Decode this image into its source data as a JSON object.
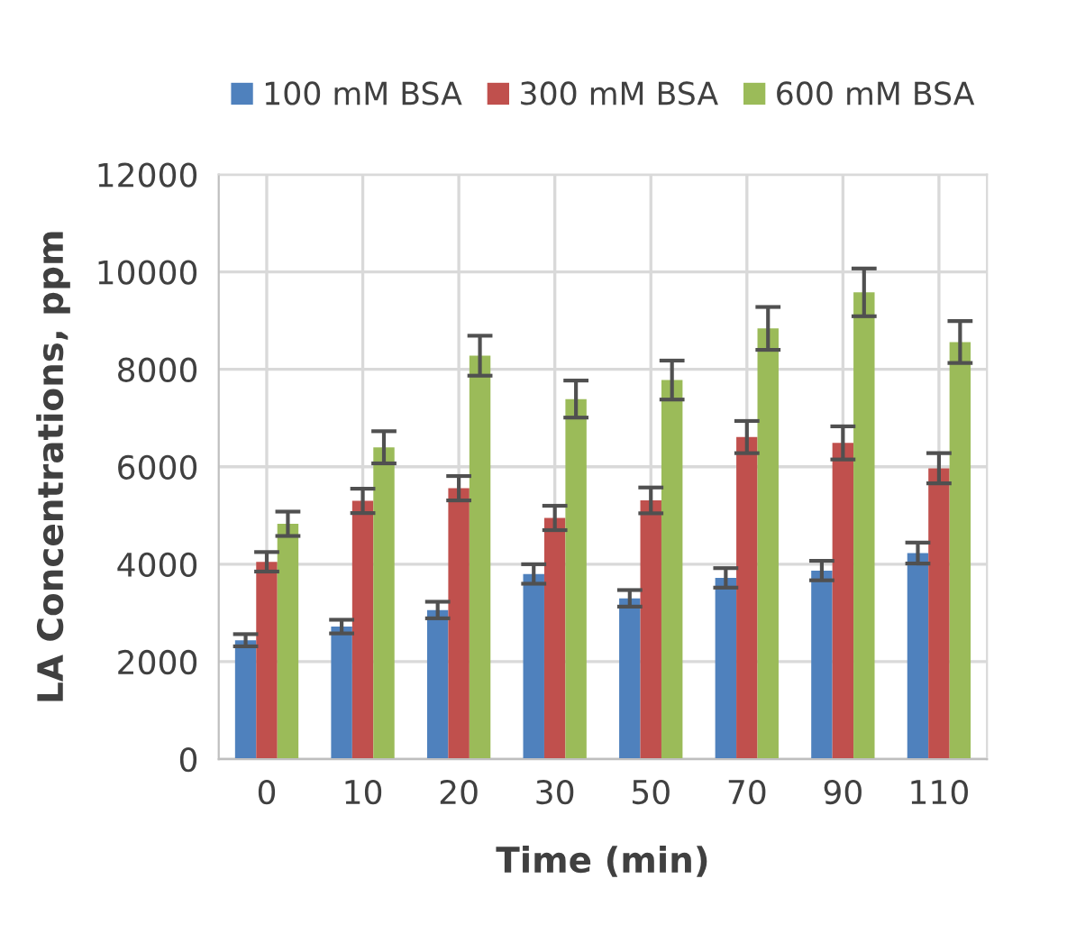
{
  "chart_data": {
    "type": "bar",
    "xlabel": "Time (min)",
    "ylabel": "LA Concentrations, ppm",
    "categories": [
      "0",
      "10",
      "20",
      "30",
      "50",
      "70",
      "90",
      "110"
    ],
    "series": [
      {
        "name": "100 mM BSA",
        "color": "#4f81bd",
        "values": [
          2440,
          2720,
          3060,
          3800,
          3300,
          3720,
          3870,
          4230
        ],
        "errors": [
          125,
          140,
          170,
          200,
          170,
          200,
          200,
          215
        ]
      },
      {
        "name": "300 mM BSA",
        "color": "#c0504d",
        "values": [
          4050,
          5300,
          5560,
          4950,
          5310,
          6610,
          6490,
          5970
        ],
        "errors": [
          200,
          250,
          250,
          250,
          265,
          330,
          340,
          310
        ]
      },
      {
        "name": "600 mM BSA",
        "color": "#9bbb59",
        "values": [
          4830,
          6400,
          8280,
          7390,
          7780,
          8840,
          9580,
          8560
        ],
        "errors": [
          250,
          330,
          410,
          380,
          400,
          440,
          490,
          430
        ]
      }
    ],
    "ylim": [
      0,
      12000
    ],
    "yticks": [
      0,
      2000,
      4000,
      6000,
      8000,
      10000,
      12000
    ],
    "grid": true,
    "legend": "top"
  }
}
